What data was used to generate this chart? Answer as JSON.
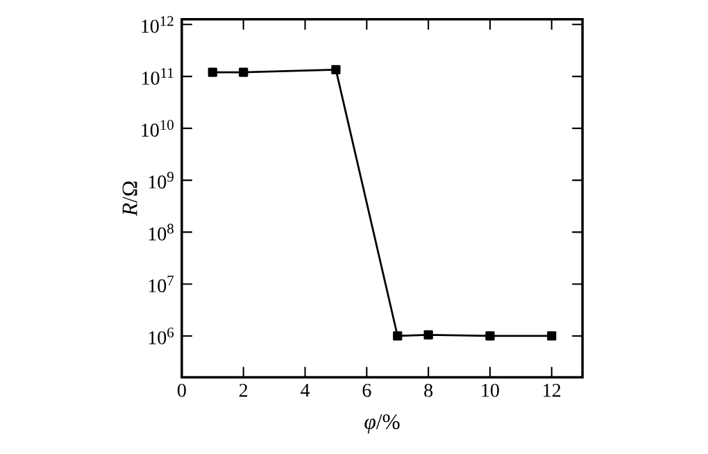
{
  "chart_data": {
    "type": "line",
    "xlabel": "*φ*/%",
    "ylabel": "*R*/Ω",
    "x": [
      1,
      2,
      5,
      7,
      8,
      10,
      12
    ],
    "values": [
      120000000000.0,
      120000000000.0,
      135000000000.0,
      1000000.0,
      1050000.0,
      1000000.0,
      1000000.0
    ],
    "color": "#000000",
    "marker": "square",
    "line_style": "solid",
    "log": "y",
    "grid": false,
    "xlim": [
      0,
      13
    ],
    "xticks": [
      0,
      2,
      4,
      6,
      8,
      10,
      12
    ],
    "ylim": [
      160000,
      1260000000000.0
    ],
    "yticks": [
      {
        "value": 1000000.0,
        "label": "10$^{6}$"
      },
      {
        "value": 10000000.0,
        "label": "10$^{7}$"
      },
      {
        "value": 100000000.0,
        "label": "10$^{8}$"
      },
      {
        "value": 1000000000.0,
        "label": "10$^{9}$"
      },
      {
        "value": 10000000000.0,
        "label": "10$^{10}$"
      },
      {
        "value": 100000000000.0,
        "label": "10$^{11}$"
      },
      {
        "value": 1000000000000.0,
        "label": "10$^{12}$"
      }
    ]
  }
}
